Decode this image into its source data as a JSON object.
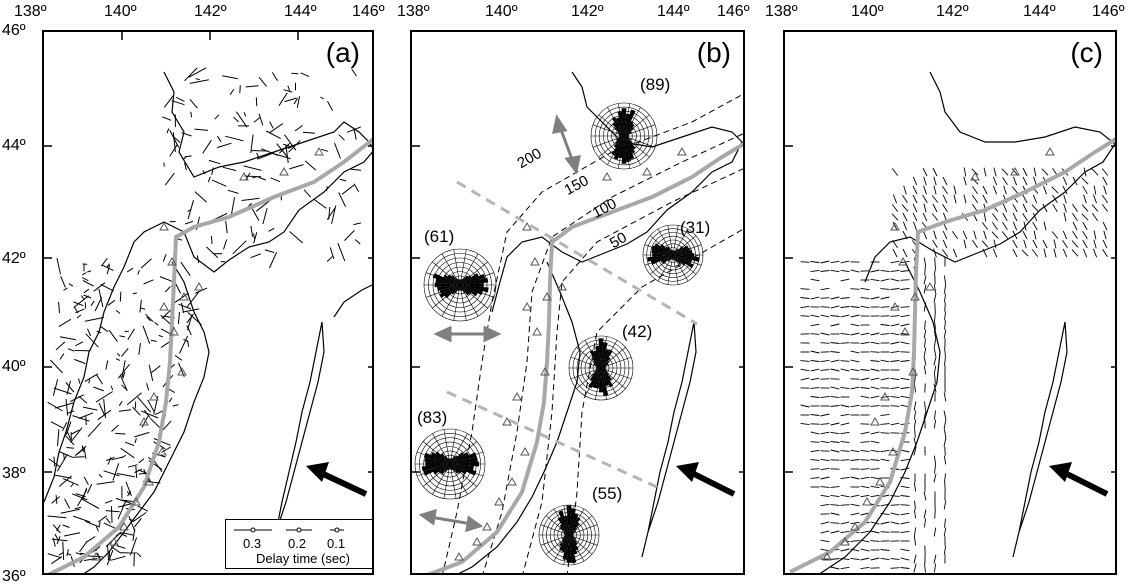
{
  "lon_ticks": [
    "138º",
    "140º",
    "142º",
    "144º",
    "146º"
  ],
  "lat_ticks": [
    "46º",
    "44º",
    "42º",
    "40º",
    "38º",
    "36º"
  ],
  "panels": [
    {
      "label": "(a)"
    },
    {
      "label": "(b)"
    },
    {
      "label": "(c)"
    }
  ],
  "rose_counts": [
    "(89)",
    "(61)",
    "(31)",
    "(42)",
    "(83)",
    "(55)"
  ],
  "contour_labels": [
    "200",
    "150",
    "100",
    "50"
  ],
  "legend": {
    "values": [
      "0.3",
      "0.2",
      "0.1"
    ],
    "title": "Delay time (sec)"
  },
  "colors": {
    "trench": "#a8a8a8",
    "dashed_gray": "#b4b4b4",
    "arrow": "#000000",
    "double_arrow": "#808080"
  }
}
